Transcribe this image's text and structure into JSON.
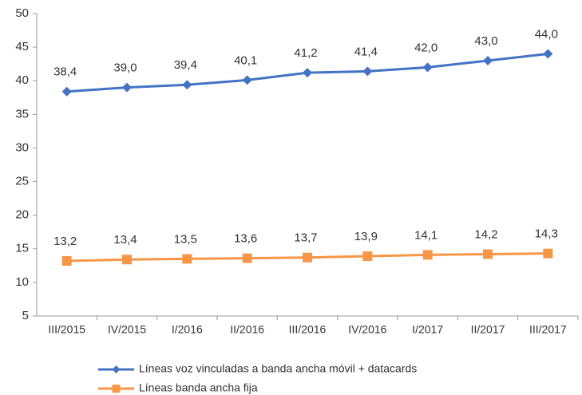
{
  "chart_data": {
    "type": "line",
    "categories": [
      "III/2015",
      "IV/2015",
      "I/2016",
      "II/2016",
      "III/2016",
      "IV/2016",
      "I/2017",
      "II/2017",
      "III/2017"
    ],
    "series": [
      {
        "name": "Líneas voz vinculadas a banda ancha móvil + datacards",
        "color": "#4472c4",
        "marker": "diamond",
        "values": [
          38.4,
          39.0,
          39.4,
          40.1,
          41.2,
          41.4,
          42.0,
          43.0,
          44.0
        ],
        "value_labels": [
          "38,4",
          "39,0",
          "39,4",
          "40,1",
          "41,2",
          "41,4",
          "42,0",
          "43,0",
          "44,0"
        ]
      },
      {
        "name": "Líneas banda ancha fija",
        "color": "#f79646",
        "marker": "square",
        "values": [
          13.2,
          13.4,
          13.5,
          13.6,
          13.7,
          13.9,
          14.1,
          14.2,
          14.3
        ],
        "value_labels": [
          "13,2",
          "13,4",
          "13,5",
          "13,6",
          "13,7",
          "13,9",
          "14,1",
          "14,2",
          "14,3"
        ]
      }
    ],
    "ylim": [
      5,
      50
    ],
    "yticks": [
      5,
      10,
      15,
      20,
      25,
      30,
      35,
      40,
      45,
      50
    ],
    "grid": false,
    "legend": "bottom"
  }
}
